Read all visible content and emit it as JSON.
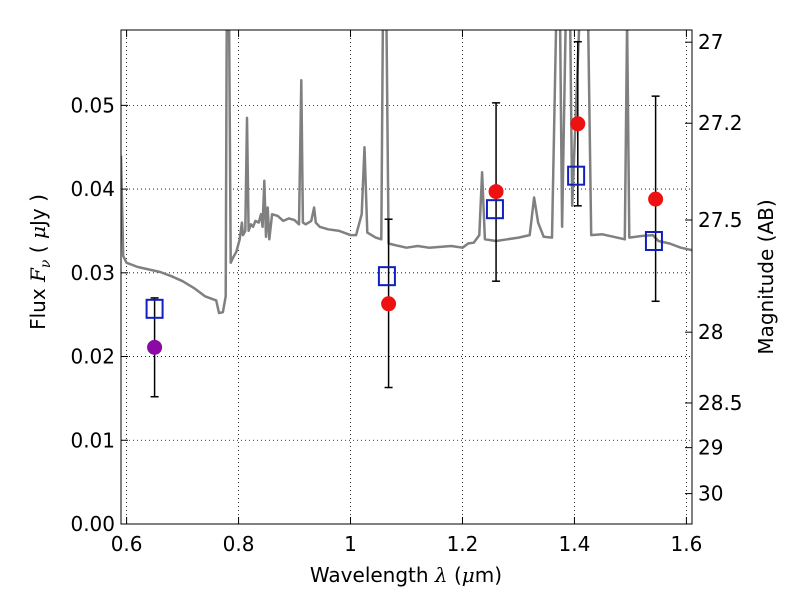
{
  "chart_data": {
    "type": "scatter",
    "xlabel": {
      "prefix": "Wavelength  ",
      "symbol": "λ",
      "unit_pre": " (",
      "unit_mu": "μ",
      "unit_post": "m)"
    },
    "ylabel": {
      "prefix": "Flux  ",
      "symbol": "F",
      "sub": "ν",
      "unit_pre": " (  ",
      "unit_mu": "μ",
      "unit_post": "Jy  )"
    },
    "y2label": "Magnitude (AB)",
    "xlim": [
      0.59,
      1.61
    ],
    "ylim": [
      0.0,
      0.059
    ],
    "grid": true,
    "x_ticks": [
      {
        "value": 0.6,
        "label": "0.6"
      },
      {
        "value": 0.8,
        "label": "0.8"
      },
      {
        "value": 1.0,
        "label": "1"
      },
      {
        "value": 1.2,
        "label": "1.2"
      },
      {
        "value": 1.4,
        "label": "1.4"
      },
      {
        "value": 1.6,
        "label": "1.6"
      }
    ],
    "y_ticks": [
      {
        "value": 0.0,
        "label": "0.00"
      },
      {
        "value": 0.01,
        "label": "0.01"
      },
      {
        "value": 0.02,
        "label": "0.02"
      },
      {
        "value": 0.03,
        "label": "0.03"
      },
      {
        "value": 0.04,
        "label": "0.04"
      },
      {
        "value": 0.05,
        "label": "0.05"
      }
    ],
    "mag_ticks": [
      {
        "mag": 27,
        "label": "27"
      },
      {
        "mag": 27.2,
        "label": "27.2"
      },
      {
        "mag": 27.5,
        "label": "27.5"
      },
      {
        "mag": 28,
        "label": "28"
      },
      {
        "mag": 28.5,
        "label": "28.5"
      },
      {
        "mag": 29,
        "label": "29"
      },
      {
        "mag": 30,
        "label": "30"
      }
    ],
    "series": [
      {
        "marker": "circle",
        "color": "#8b0aa5",
        "points": [
          {
            "x": 0.65,
            "y": 0.0211,
            "err": [
              0.0152,
              0.027
            ]
          }
        ]
      },
      {
        "marker": "circle",
        "color": "#ee1111",
        "points": [
          {
            "x": 1.068,
            "y": 0.0263,
            "err": [
              0.0163,
              0.0364
            ]
          },
          {
            "x": 1.26,
            "y": 0.0397,
            "err": [
              0.029,
              0.0503
            ]
          },
          {
            "x": 1.406,
            "y": 0.0478,
            "err": [
              0.038,
              0.0576
            ]
          },
          {
            "x": 1.545,
            "y": 0.0388,
            "err": [
              0.0266,
              0.0511
            ]
          }
        ]
      },
      {
        "marker": "open-square",
        "color": "#1020c0",
        "points": [
          {
            "x": 0.65,
            "y": 0.0257
          },
          {
            "x": 1.065,
            "y": 0.0296
          },
          {
            "x": 1.258,
            "y": 0.0376
          },
          {
            "x": 1.403,
            "y": 0.0416
          },
          {
            "x": 1.542,
            "y": 0.0338
          }
        ]
      },
      {
        "marker": "line",
        "color": "#808080",
        "points": [
          [
            0.59,
            0.044
          ],
          [
            0.592,
            0.038
          ],
          [
            0.594,
            0.032
          ],
          [
            0.6,
            0.0312
          ],
          [
            0.62,
            0.0307
          ],
          [
            0.64,
            0.0304
          ],
          [
            0.66,
            0.0301
          ],
          [
            0.68,
            0.0296
          ],
          [
            0.7,
            0.029
          ],
          [
            0.72,
            0.0282
          ],
          [
            0.74,
            0.0272
          ],
          [
            0.76,
            0.0267
          ],
          [
            0.765,
            0.0252
          ],
          [
            0.772,
            0.0253
          ],
          [
            0.777,
            0.0272
          ],
          [
            0.779,
            0.062
          ],
          [
            0.783,
            0.062
          ],
          [
            0.786,
            0.0312
          ],
          [
            0.79,
            0.0318
          ],
          [
            0.796,
            0.0325
          ],
          [
            0.802,
            0.034
          ],
          [
            0.806,
            0.036
          ],
          [
            0.808,
            0.0345
          ],
          [
            0.812,
            0.035
          ],
          [
            0.815,
            0.0485
          ],
          [
            0.818,
            0.035
          ],
          [
            0.822,
            0.0358
          ],
          [
            0.826,
            0.0355
          ],
          [
            0.83,
            0.0362
          ],
          [
            0.836,
            0.036
          ],
          [
            0.84,
            0.037
          ],
          [
            0.843,
            0.0355
          ],
          [
            0.846,
            0.041
          ],
          [
            0.849,
            0.0343
          ],
          [
            0.852,
            0.0378
          ],
          [
            0.855,
            0.034
          ],
          [
            0.86,
            0.037
          ],
          [
            0.87,
            0.0368
          ],
          [
            0.88,
            0.0362
          ],
          [
            0.89,
            0.0365
          ],
          [
            0.9,
            0.0363
          ],
          [
            0.908,
            0.0358
          ],
          [
            0.912,
            0.053
          ],
          [
            0.915,
            0.036
          ],
          [
            0.92,
            0.0358
          ],
          [
            0.93,
            0.0362
          ],
          [
            0.935,
            0.0378
          ],
          [
            0.938,
            0.036
          ],
          [
            0.945,
            0.0355
          ],
          [
            0.96,
            0.0352
          ],
          [
            0.98,
            0.035
          ],
          [
            1.0,
            0.0345
          ],
          [
            1.01,
            0.0345
          ],
          [
            1.02,
            0.037
          ],
          [
            1.025,
            0.045
          ],
          [
            1.03,
            0.0348
          ],
          [
            1.045,
            0.0342
          ],
          [
            1.055,
            0.034
          ],
          [
            1.058,
            0.062
          ],
          [
            1.064,
            0.062
          ],
          [
            1.068,
            0.0335
          ],
          [
            1.08,
            0.0333
          ],
          [
            1.1,
            0.033
          ],
          [
            1.12,
            0.0332
          ],
          [
            1.14,
            0.033
          ],
          [
            1.16,
            0.0331
          ],
          [
            1.18,
            0.0332
          ],
          [
            1.2,
            0.033
          ],
          [
            1.21,
            0.0335
          ],
          [
            1.22,
            0.0336
          ],
          [
            1.23,
            0.0345
          ],
          [
            1.235,
            0.042
          ],
          [
            1.24,
            0.034
          ],
          [
            1.26,
            0.0338
          ],
          [
            1.28,
            0.034
          ],
          [
            1.3,
            0.0342
          ],
          [
            1.32,
            0.0345
          ],
          [
            1.328,
            0.039
          ],
          [
            1.335,
            0.036
          ],
          [
            1.345,
            0.0343
          ],
          [
            1.36,
            0.0342
          ],
          [
            1.368,
            0.062
          ],
          [
            1.374,
            0.062
          ],
          [
            1.378,
            0.0355
          ],
          [
            1.385,
            0.062
          ],
          [
            1.392,
            0.062
          ],
          [
            1.396,
            0.038
          ],
          [
            1.41,
            0.062
          ],
          [
            1.424,
            0.062
          ],
          [
            1.43,
            0.0345
          ],
          [
            1.45,
            0.0346
          ],
          [
            1.47,
            0.0343
          ],
          [
            1.49,
            0.034
          ],
          [
            1.494,
            0.06
          ],
          [
            1.498,
            0.0342
          ],
          [
            1.52,
            0.0344
          ],
          [
            1.54,
            0.0345
          ],
          [
            1.55,
            0.0338
          ],
          [
            1.57,
            0.0335
          ],
          [
            1.59,
            0.033
          ],
          [
            1.61,
            0.0327
          ]
        ]
      }
    ]
  }
}
